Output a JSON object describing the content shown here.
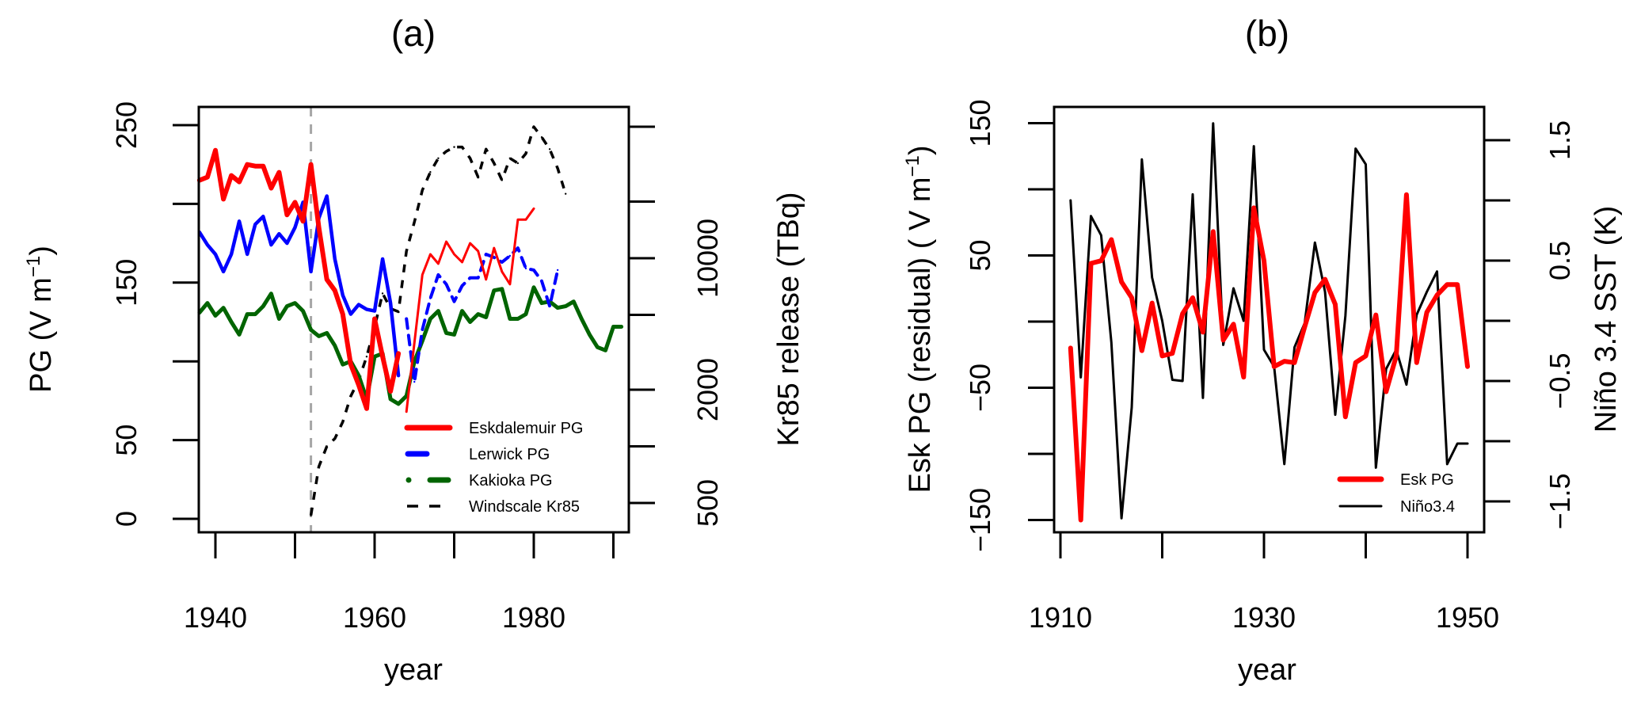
{
  "chart_data": [
    {
      "type": "line",
      "title": "(a)",
      "xlabel": "year",
      "ylabel": "PG (V m",
      "ylabel_sup": "−1",
      "ylabel_end": ")",
      "y2label": "Kr85 release (TBq)",
      "xlim": [
        1938,
        1992
      ],
      "ylim": [
        -7,
        263
      ],
      "y2_scale": "log",
      "x_ticks": [
        1940,
        1950,
        1960,
        1970,
        1980,
        1990
      ],
      "x_tick_labels": [
        "1940",
        "",
        "1960",
        "",
        "1980",
        ""
      ],
      "y_ticks": [
        0,
        50,
        100,
        150,
        200,
        250
      ],
      "y_tick_labels": [
        "0",
        "50",
        "",
        "150",
        "",
        "250"
      ],
      "y2_ticks": [
        500,
        1000,
        2000,
        5000,
        10000,
        20000,
        50000
      ],
      "y2_tick_labels": [
        "500",
        "",
        "2000",
        "",
        "10000",
        "",
        ""
      ],
      "vline_year": 1952,
      "legend_position": "bottom-right",
      "series": [
        {
          "name": "Eskdalemuir PG",
          "color": "#ff0000",
          "axis": "left",
          "segments": [
            {
              "style": "thick",
              "x": [
                1938,
                1939,
                1940,
                1941,
                1942,
                1943,
                1944,
                1945,
                1946,
                1947,
                1948,
                1949,
                1950,
                1951,
                1952,
                1953,
                1954,
                1955,
                1956,
                1957,
                1958,
                1959,
                1960,
                1961,
                1962,
                1963
              ],
              "y": [
                215,
                217,
                234,
                203,
                218,
                214,
                225,
                224,
                224,
                210,
                220,
                193,
                201,
                189,
                225,
                185,
                152,
                145,
                130,
                98,
                85,
                70,
                127,
                103,
                81,
                105
              ]
            },
            {
              "style": "thin",
              "x": [
                1964,
                1965,
                1966,
                1967,
                1968,
                1969,
                1970,
                1971,
                1972,
                1973,
                1974,
                1975,
                1976,
                1977,
                1978,
                1979,
                1980
              ],
              "y": [
                68,
                112,
                155,
                168,
                162,
                176,
                168,
                163,
                175,
                170,
                152,
                172,
                157,
                149,
                190,
                190,
                197
              ]
            }
          ]
        },
        {
          "name": "Lerwick PG",
          "color": "#0000ff",
          "axis": "left",
          "segments": [
            {
              "style": "thick",
              "x": [
                1938,
                1939,
                1940,
                1941,
                1942,
                1943,
                1944,
                1945,
                1946,
                1947,
                1948,
                1949,
                1950,
                1951,
                1952,
                1953,
                1954,
                1955,
                1956,
                1957,
                1958,
                1959,
                1960,
                1961,
                1962,
                1963
              ],
              "y": [
                182,
                174,
                168,
                157,
                168,
                189,
                168,
                187,
                192,
                174,
                181,
                175,
                185,
                201,
                157,
                191,
                205,
                165,
                142,
                130,
                136,
                133,
                132,
                165,
                137,
                91
              ]
            },
            {
              "style": "dashed",
              "x": [
                1964,
                1965,
                1966,
                1967,
                1968,
                1969,
                1970,
                1971,
                1972,
                1973,
                1974,
                1975,
                1976,
                1977,
                1978,
                1979,
                1980,
                1981,
                1982,
                1983
              ],
              "y": [
                127,
                87,
                120,
                140,
                155,
                149,
                138,
                148,
                153,
                153,
                168,
                166,
                163,
                167,
                172,
                159,
                158,
                151,
                135,
                158
              ]
            }
          ]
        },
        {
          "name": "Kakioka PG",
          "color": "#006400",
          "axis": "left",
          "segments": [
            {
              "style": "thick",
              "x": [
                1938,
                1939,
                1940,
                1941,
                1942,
                1943,
                1944,
                1945,
                1946,
                1947,
                1948,
                1949,
                1950,
                1951,
                1952,
                1953,
                1954,
                1955,
                1956,
                1957,
                1958,
                1959,
                1960,
                1961,
                1962,
                1963,
                1964,
                1965,
                1966,
                1967,
                1968,
                1969,
                1970,
                1971,
                1972,
                1973,
                1974,
                1975,
                1976,
                1977,
                1978,
                1979,
                1980,
                1981,
                1982,
                1983,
                1984,
                1985,
                1986,
                1987,
                1988,
                1989,
                1990,
                1991
              ],
              "y": [
                131,
                137,
                129,
                134,
                125,
                117,
                130,
                130,
                135,
                143,
                127,
                135,
                137,
                132,
                120,
                116,
                118,
                110,
                98,
                100,
                91,
                76,
                103,
                105,
                76,
                73,
                78,
                100,
                113,
                127,
                132,
                118,
                117,
                132,
                125,
                130,
                128,
                145,
                146,
                127,
                127,
                130,
                147,
                137,
                138,
                134,
                135,
                138,
                127,
                117,
                109,
                107,
                122,
                122
              ]
            }
          ]
        },
        {
          "name": "Windscale Kr85",
          "color": "#000000",
          "axis": "right",
          "segments": [
            {
              "style": "dashed",
              "x": [
                1952,
                1953,
                1954,
                1955,
                1956,
                1957,
                1958,
                1959,
                1960,
                1961,
                1962,
                1963,
                1964,
                1965,
                1966,
                1967,
                1968,
                1969,
                1970,
                1971,
                1972,
                1973,
                1974,
                1975,
                1976,
                1977,
                1978,
                1979,
                1980,
                1981,
                1982,
                1983,
                1984
              ],
              "y": [
                430,
                780,
                1000,
                1100,
                1350,
                1850,
                2250,
                3000,
                4300,
                6500,
                5400,
                5200,
                10900,
                15600,
                23000,
                28700,
                34000,
                37000,
                39000,
                39000,
                34000,
                27000,
                38000,
                32000,
                26000,
                34000,
                32000,
                36000,
                50000,
                44000,
                38000,
                30000,
                22000
              ]
            }
          ]
        }
      ]
    },
    {
      "type": "line",
      "title": "(b)",
      "xlabel": "year",
      "ylabel": "Esk PG (residual) ( V m",
      "ylabel_sup": "−1",
      "ylabel_end": ")",
      "y2label": "Niño 3.4 SST (K)",
      "xlim": [
        1909.5,
        1951.6
      ],
      "ylim": [
        -162,
        160
      ],
      "y2lim": [
        -1.75,
        1.75
      ],
      "x_ticks": [
        1910,
        1920,
        1930,
        1940,
        1950
      ],
      "x_tick_labels": [
        "1910",
        "",
        "1930",
        "",
        "1950"
      ],
      "y_ticks": [
        -150,
        -100,
        -50,
        0,
        50,
        100,
        150
      ],
      "y_tick_labels": [
        "−150",
        "",
        "−50",
        "",
        "50",
        "",
        "150"
      ],
      "y2_ticks": [
        -1.5,
        -1.0,
        -0.5,
        0.0,
        0.5,
        1.0,
        1.5
      ],
      "y2_tick_labels": [
        "−1.5",
        "",
        "−0.5",
        "",
        "0.5",
        "",
        "1.5"
      ],
      "legend_position": "bottom-right",
      "x": [
        1911,
        1912,
        1913,
        1914,
        1915,
        1916,
        1917,
        1918,
        1919,
        1920,
        1921,
        1922,
        1923,
        1924,
        1925,
        1926,
        1927,
        1928,
        1929,
        1930,
        1931,
        1932,
        1933,
        1934,
        1935,
        1936,
        1937,
        1938,
        1939,
        1940,
        1941,
        1942,
        1943,
        1944,
        1945,
        1946,
        1947,
        1948,
        1949,
        1950
      ],
      "series": [
        {
          "name": "Esk PG",
          "color": "#ff0000",
          "axis": "left",
          "values": [
            -20,
            -150,
            44,
            46,
            62,
            30,
            18,
            -22,
            14,
            -26,
            -24,
            6,
            18,
            -8,
            68,
            -14,
            -2,
            -42,
            86,
            46,
            -34,
            -30,
            -31,
            -4,
            22,
            32,
            13,
            -72,
            -31,
            -26,
            5,
            -53,
            -26,
            96,
            -31,
            7,
            20,
            28,
            28,
            -34
          ]
        },
        {
          "name": "Niño3.4",
          "color": "#000000",
          "axis": "right",
          "values": [
            1.0,
            -0.47,
            0.87,
            0.71,
            -0.18,
            -1.64,
            -0.72,
            1.34,
            0.36,
            0.0,
            -0.49,
            -0.5,
            1.05,
            -0.64,
            1.64,
            -0.2,
            0.27,
            0.0,
            1.45,
            -0.24,
            -0.38,
            -1.19,
            -0.22,
            -0.02,
            0.65,
            0.24,
            -0.78,
            0.04,
            1.43,
            1.3,
            -1.22,
            -0.4,
            -0.24,
            -0.53,
            0.05,
            0.24,
            0.41,
            -1.19,
            -1.02,
            -1.02
          ]
        }
      ]
    }
  ]
}
